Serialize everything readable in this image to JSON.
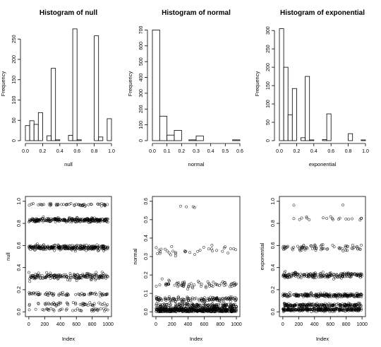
{
  "chart_data": [
    {
      "type": "histogram",
      "title": "Histogram of null",
      "xlabel": "null",
      "ylabel": "Frequency",
      "xlim": [
        0,
        1
      ],
      "ylim": [
        0,
        280
      ],
      "xticks": [
        "0.0",
        "0.2",
        "0.4",
        "0.6",
        "0.8",
        "1.0"
      ],
      "yticks": [
        "0",
        "50",
        "100",
        "150",
        "200",
        "250"
      ],
      "bin_width": 0.05,
      "bins_start": 0,
      "values": [
        37,
        49,
        40,
        69,
        0,
        12,
        178,
        2,
        0,
        0,
        13,
        275,
        2,
        0,
        0,
        0,
        258,
        9,
        0,
        54
      ]
    },
    {
      "type": "histogram",
      "title": "Histogram of normal",
      "xlabel": "normal",
      "ylabel": "Frequency",
      "xlim": [
        0,
        0.6
      ],
      "ylim": [
        0,
        720
      ],
      "xticks": [
        "0.0",
        "0.1",
        "0.2",
        "0.3",
        "0.4",
        "0.5",
        "0.6"
      ],
      "yticks": [
        "0",
        "100",
        "200",
        "300",
        "400",
        "500",
        "600",
        "700"
      ],
      "bin_width": 0.05,
      "bins_start": 0,
      "values": [
        700,
        155,
        35,
        65,
        0,
        5,
        30,
        0,
        0,
        0,
        0,
        5
      ]
    },
    {
      "type": "histogram",
      "title": "Histogram of exponential",
      "xlabel": "exponential",
      "ylabel": "Frequency",
      "xlim": [
        0,
        1
      ],
      "ylim": [
        0,
        310
      ],
      "xticks": [
        "0.0",
        "0.2",
        "0.4",
        "0.6",
        "0.8",
        "1.0"
      ],
      "yticks": [
        "0",
        "50",
        "100",
        "150",
        "200",
        "250",
        "300"
      ],
      "bin_width": 0.05,
      "bins_start": 0,
      "values": [
        305,
        200,
        70,
        142,
        0,
        8,
        175,
        2,
        0,
        0,
        3,
        73,
        0,
        0,
        0,
        0,
        19,
        0,
        0,
        2
      ]
    },
    {
      "type": "scatter",
      "xlabel": "Index",
      "ylabel": "null",
      "xlim": [
        0,
        1000
      ],
      "ylim": [
        0,
        1
      ],
      "xticks": [
        "0",
        "200",
        "400",
        "600",
        "800",
        "1000"
      ],
      "yticks": [
        "0.0",
        "0.2",
        "0.4",
        "0.6",
        "0.8",
        "1.0"
      ],
      "n": 1000,
      "clusters": [
        {
          "y": 0.02,
          "spread": 0.012,
          "count": 37
        },
        {
          "y": 0.07,
          "spread": 0.012,
          "count": 49
        },
        {
          "y": 0.16,
          "spread": 0.012,
          "count": 69
        },
        {
          "y": 0.32,
          "spread": 0.022,
          "count": 178
        },
        {
          "y": 0.58,
          "spread": 0.018,
          "count": 275
        },
        {
          "y": 0.83,
          "spread": 0.015,
          "count": 258
        },
        {
          "y": 0.97,
          "spread": 0.01,
          "count": 54
        }
      ]
    },
    {
      "type": "scatter",
      "xlabel": "Index",
      "ylabel": "normal",
      "xlim": [
        0,
        1000
      ],
      "ylim": [
        0,
        0.6
      ],
      "xticks": [
        "0",
        "200",
        "400",
        "600",
        "800",
        "1000"
      ],
      "yticks": [
        "0.0",
        "0.1",
        "0.2",
        "0.3",
        "0.4",
        "0.5",
        "0.6"
      ],
      "n": 1000,
      "clusters": [
        {
          "y": 0.01,
          "spread": 0.012,
          "count": 560
        },
        {
          "y": 0.035,
          "spread": 0.01,
          "count": 140
        },
        {
          "y": 0.07,
          "spread": 0.01,
          "count": 130
        },
        {
          "y": 0.15,
          "spread": 0.014,
          "count": 70
        },
        {
          "y": 0.33,
          "spread": 0.02,
          "count": 35
        },
        {
          "y": 0.57,
          "spread": 0.006,
          "count": 4
        }
      ]
    },
    {
      "type": "scatter",
      "xlabel": "Index",
      "ylabel": "exponential",
      "xlim": [
        0,
        1000
      ],
      "ylim": [
        0,
        1
      ],
      "xticks": [
        "0",
        "200",
        "400",
        "600",
        "800",
        "1000"
      ],
      "yticks": [
        "0.0",
        "0.2",
        "0.4",
        "0.6",
        "0.8",
        "1.0"
      ],
      "n": 1000,
      "clusters": [
        {
          "y": 0.02,
          "spread": 0.012,
          "count": 305
        },
        {
          "y": 0.06,
          "spread": 0.012,
          "count": 200
        },
        {
          "y": 0.15,
          "spread": 0.015,
          "count": 212
        },
        {
          "y": 0.33,
          "spread": 0.02,
          "count": 185
        },
        {
          "y": 0.58,
          "spread": 0.02,
          "count": 73
        },
        {
          "y": 0.84,
          "spread": 0.012,
          "count": 19
        },
        {
          "y": 0.97,
          "spread": 0.005,
          "count": 2
        }
      ]
    }
  ]
}
